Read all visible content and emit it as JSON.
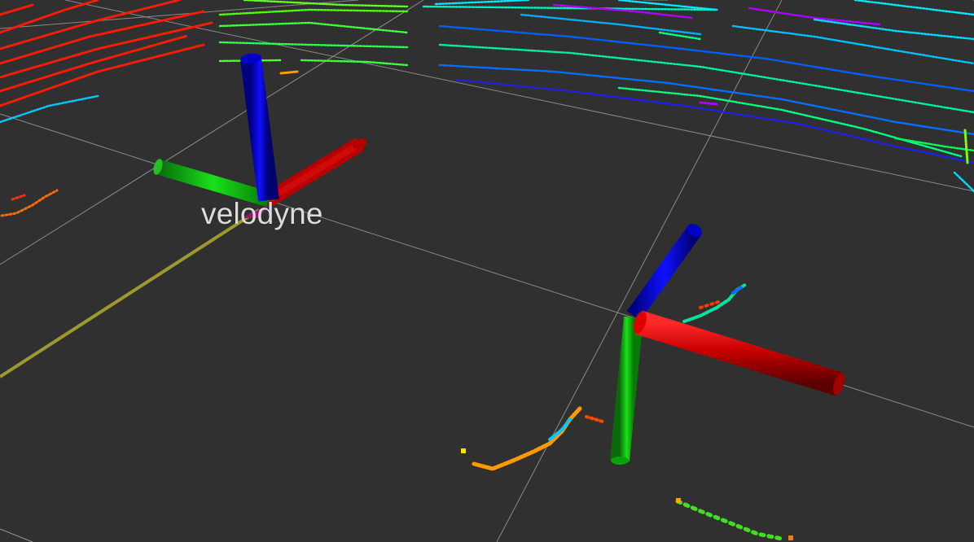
{
  "view": {
    "background_color": "#303030",
    "grid_color": "#9a9a9a"
  },
  "frames": [
    {
      "name": "velodyne",
      "label": "velodyne",
      "label_visible": true
    },
    {
      "name": "unlabeled-frame",
      "label": "",
      "label_visible": false
    }
  ],
  "axis_colors": {
    "x": "#d00000",
    "y": "#00c000",
    "z": "#0000d8"
  },
  "link_color": "#9c9a2e",
  "point_cloud_palette": [
    "#ff1a00",
    "#ff8a00",
    "#ffd000",
    "#7fff00",
    "#00ff70",
    "#00e6ff",
    "#0070ff",
    "#2000d0",
    "#b000ff"
  ]
}
